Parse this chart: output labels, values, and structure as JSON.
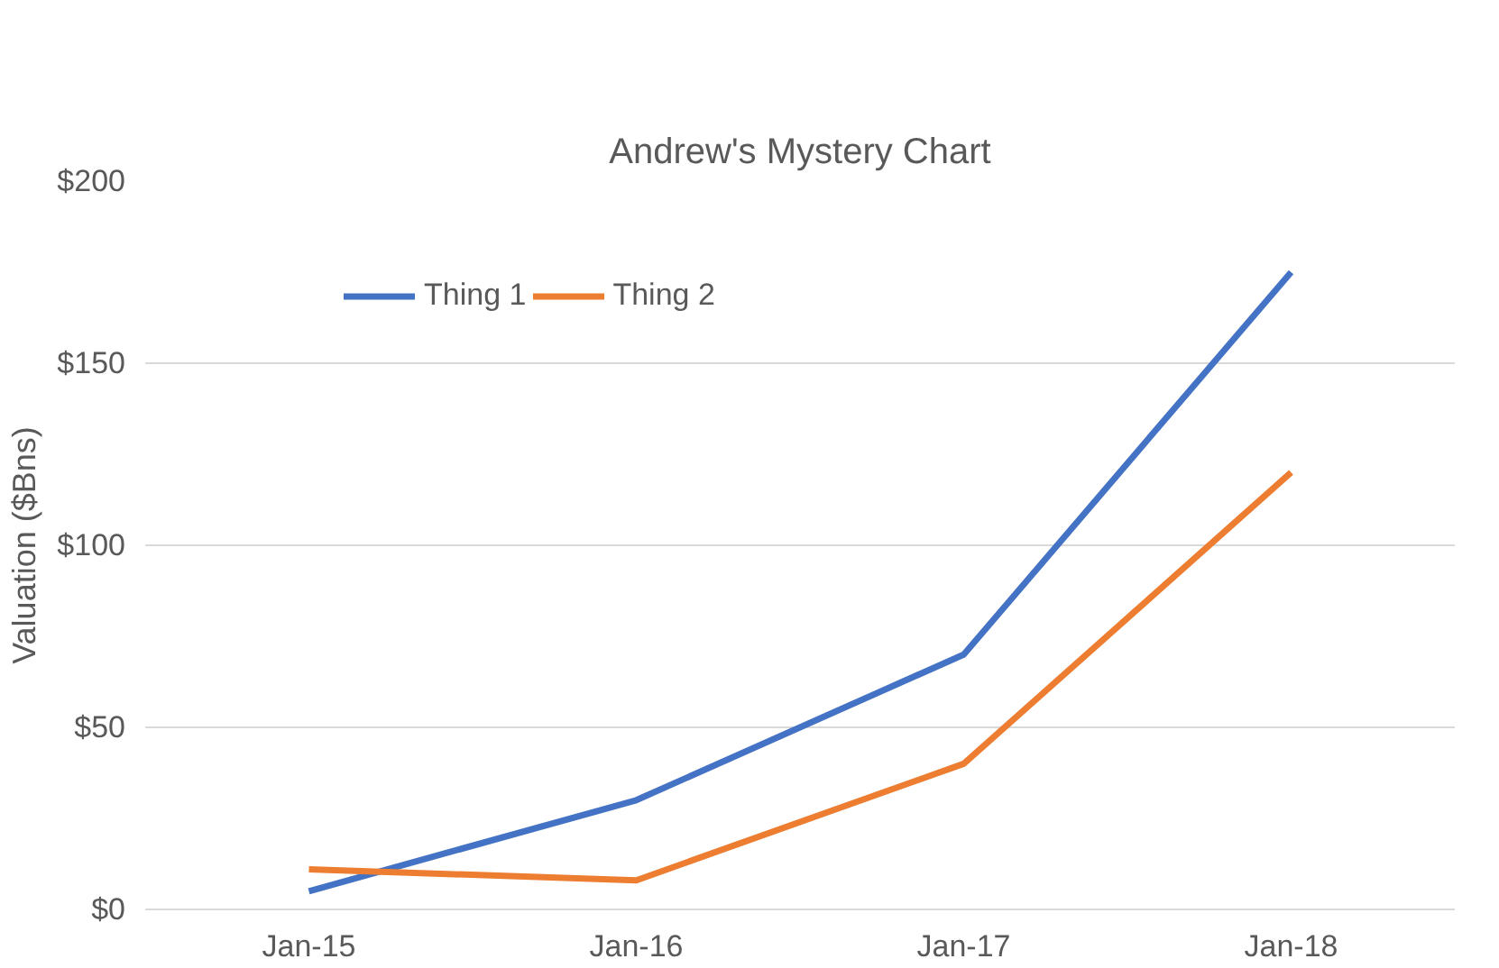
{
  "chart_data": {
    "type": "line",
    "title": "Andrew's Mystery Chart",
    "ylabel": "Valuation ($Bns)",
    "categories": [
      "Jan-15",
      "Jan-16",
      "Jan-17",
      "Jan-18"
    ],
    "series": [
      {
        "name": "Thing 1",
        "color": "#4472c4",
        "values": [
          5,
          30,
          70,
          175
        ]
      },
      {
        "name": "Thing 2",
        "color": "#ed7d31",
        "values": [
          11,
          8,
          40,
          120
        ]
      }
    ],
    "ylim": [
      0,
      200
    ],
    "yticks": [
      {
        "value": 0,
        "label": "$0"
      },
      {
        "value": 50,
        "label": "$50"
      },
      {
        "value": 100,
        "label": "$100"
      },
      {
        "value": 150,
        "label": "$150"
      },
      {
        "value": 200,
        "label": "$200"
      }
    ],
    "grid": "y",
    "legend": "top",
    "marker": "none",
    "line_style": "solid"
  }
}
